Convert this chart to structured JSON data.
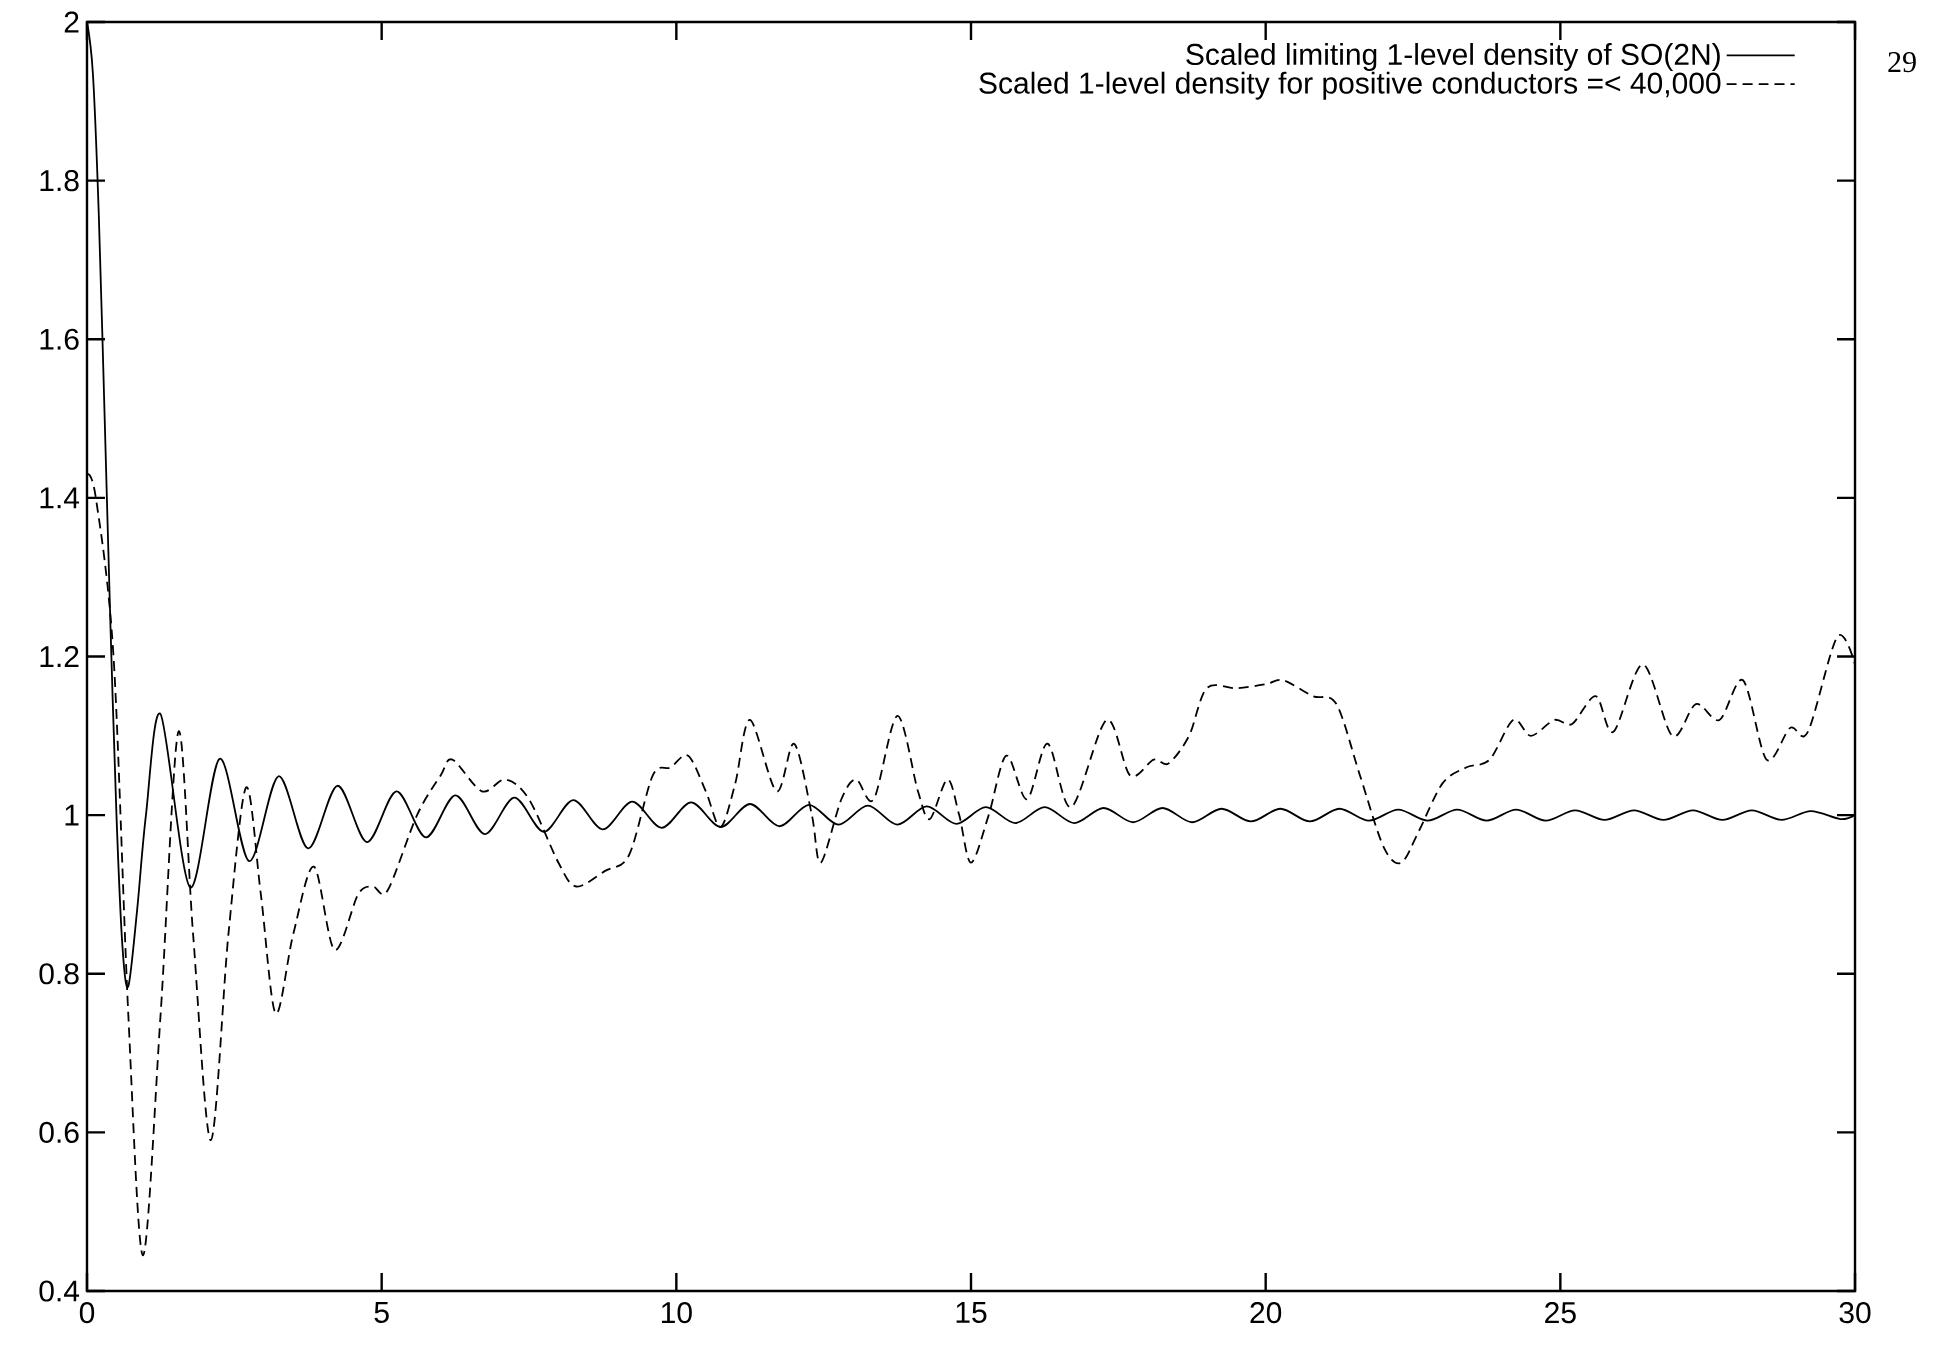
{
  "chart_data": {
    "type": "line",
    "xlim": [
      0,
      30
    ],
    "ylim": [
      0.4,
      2
    ],
    "xticks": [
      0,
      5,
      10,
      15,
      20,
      25,
      30
    ],
    "yticks": [
      0.4,
      0.6,
      0.8,
      1,
      1.2,
      1.4,
      1.6,
      1.8,
      2
    ],
    "legend": "top right",
    "annotations": [
      "29"
    ],
    "series": [
      {
        "name": "Scaled limiting 1-level density of SO(2N)",
        "color": "#000000",
        "line_style": "solid",
        "x": [
          0,
          0.1,
          0.2,
          0.3,
          0.4,
          0.5,
          0.6,
          0.7,
          0.85,
          1.0,
          1.25,
          1.75,
          2.25,
          2.75,
          3.25,
          3.75,
          4.25,
          4.75,
          5.25,
          5.75,
          6.25,
          6.75,
          7.25,
          7.75,
          8.25,
          8.75,
          9.25,
          9.75,
          10.25,
          10.75,
          11.25,
          11.75,
          12.25,
          12.75,
          13.25,
          13.75,
          14.25,
          14.75,
          15.25,
          15.75,
          16.25,
          16.75,
          17.25,
          17.75,
          18.25,
          18.75,
          19.25,
          19.75,
          20.25,
          20.75,
          21.25,
          21.75,
          22.25,
          22.75,
          23.25,
          23.75,
          24.25,
          24.75,
          25.25,
          25.75,
          26.25,
          26.75,
          27.25,
          27.75,
          28.25,
          28.75,
          29.25,
          29.75,
          30
        ],
        "values": [
          2,
          1.935,
          1.757,
          1.5,
          1.234,
          1.0,
          0.836,
          0.784,
          0.88,
          1.0,
          1.127,
          0.909,
          1.071,
          0.942,
          1.049,
          0.958,
          1.037,
          0.966,
          1.03,
          0.972,
          1.025,
          0.976,
          1.022,
          0.979,
          1.019,
          0.982,
          1.017,
          0.984,
          1.016,
          0.985,
          1.014,
          0.986,
          1.013,
          0.988,
          1.012,
          0.988,
          1.011,
          0.989,
          1.01,
          0.99,
          1.01,
          0.99,
          1.009,
          0.991,
          1.009,
          0.991,
          1.008,
          0.992,
          1.008,
          0.992,
          1.008,
          0.993,
          1.007,
          0.993,
          1.007,
          0.993,
          1.007,
          0.993,
          1.006,
          0.994,
          1.006,
          0.994,
          1.006,
          0.994,
          1.006,
          0.994,
          1.005,
          0.995,
          1.0
        ]
      },
      {
        "name": "Scaled 1-level density for positive conductors =< 40,000",
        "color": "#000000",
        "line_style": "dashed",
        "x": [
          0,
          0.15,
          0.45,
          0.7,
          0.95,
          1.25,
          1.55,
          1.8,
          2.1,
          2.4,
          2.7,
          2.95,
          3.2,
          3.5,
          3.85,
          4.2,
          4.6,
          4.85,
          5.1,
          5.6,
          6.0,
          6.2,
          6.7,
          7.1,
          7.5,
          8.0,
          8.3,
          8.8,
          9.2,
          9.6,
          9.9,
          10.2,
          10.5,
          10.75,
          11.0,
          11.25,
          11.7,
          12.0,
          12.3,
          12.45,
          12.8,
          13.05,
          13.35,
          13.75,
          14.1,
          14.3,
          14.6,
          14.8,
          15.0,
          15.3,
          15.6,
          15.95,
          16.3,
          16.7,
          17.3,
          17.7,
          18.1,
          18.35,
          18.7,
          19.0,
          19.5,
          20.0,
          20.3,
          20.8,
          21.2,
          21.6,
          22.0,
          22.3,
          22.6,
          23.0,
          23.4,
          23.8,
          24.2,
          24.5,
          24.9,
          25.2,
          25.6,
          25.9,
          26.4,
          26.9,
          27.3,
          27.7,
          28.1,
          28.5,
          28.9,
          29.2,
          29.7,
          30.0
        ],
        "values": [
          1.43,
          1.4,
          1.2,
          0.75,
          0.445,
          0.75,
          1.105,
          0.85,
          0.59,
          0.85,
          1.035,
          0.9,
          0.75,
          0.85,
          0.935,
          0.83,
          0.9,
          0.91,
          0.905,
          1.0,
          1.05,
          1.07,
          1.03,
          1.045,
          1.02,
          0.94,
          0.91,
          0.93,
          0.95,
          1.05,
          1.06,
          1.075,
          1.03,
          0.985,
          1.04,
          1.12,
          1.03,
          1.09,
          1.0,
          0.94,
          1.02,
          1.045,
          1.02,
          1.125,
          1.03,
          0.995,
          1.045,
          1.0,
          0.94,
          1.0,
          1.075,
          1.02,
          1.09,
          1.01,
          1.12,
          1.05,
          1.07,
          1.065,
          1.1,
          1.16,
          1.16,
          1.165,
          1.17,
          1.15,
          1.14,
          1.05,
          0.96,
          0.94,
          0.98,
          1.04,
          1.06,
          1.07,
          1.12,
          1.1,
          1.12,
          1.115,
          1.15,
          1.105,
          1.19,
          1.1,
          1.14,
          1.12,
          1.17,
          1.07,
          1.11,
          1.105,
          1.225,
          1.19
        ]
      }
    ]
  }
}
